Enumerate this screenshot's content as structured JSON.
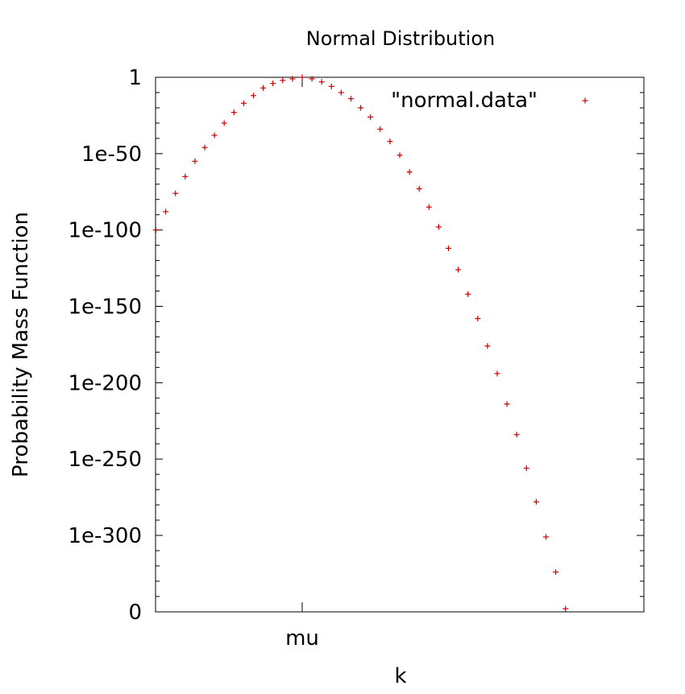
{
  "chart_data": {
    "type": "scatter",
    "title": "Normal Distribution",
    "xlabel": "k",
    "ylabel": "Probability Mass Function",
    "x_ticks": [
      "mu"
    ],
    "y_ticks": [
      "1",
      "1e-50",
      "1e-100",
      "1e-150",
      "1e-200",
      "1e-250",
      "1e-300",
      "0"
    ],
    "y_scale": "log10",
    "grid": false,
    "legend_position": "top-right",
    "series": [
      {
        "name": "\"normal.data\"",
        "color": "#cc0000",
        "marker": "plus",
        "k_offset_from_mu": [
          -15,
          -14,
          -13,
          -12,
          -11,
          -10,
          -9,
          -8,
          -7,
          -6,
          -5,
          -4,
          -3,
          -2,
          -1,
          0,
          1,
          2,
          3,
          4,
          5,
          6,
          7,
          8,
          9,
          10,
          11,
          12,
          13,
          14,
          15,
          16,
          17,
          18,
          19,
          20,
          21,
          22,
          23,
          24,
          25,
          26,
          27
        ],
        "log10_values": [
          -100,
          -88,
          -76,
          -65,
          -55,
          -46,
          -38,
          -30,
          -23,
          -17,
          -12,
          -7,
          -4,
          -2,
          -1,
          0,
          -1,
          -3,
          -6,
          -10,
          -14,
          -20,
          -26,
          -34,
          -42,
          -51,
          -62,
          -73,
          -85,
          -98,
          -112,
          -126,
          -142,
          -158,
          -176,
          -194,
          -214,
          -234,
          -256,
          -278,
          -301,
          -324,
          -348
        ]
      }
    ]
  }
}
